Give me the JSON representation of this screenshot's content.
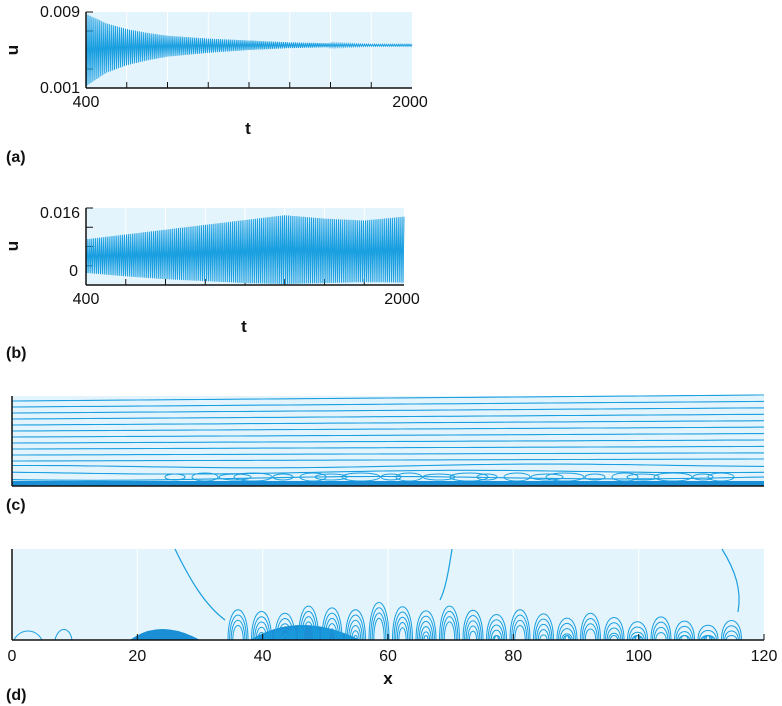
{
  "chart_data": [
    {
      "panel": "(a)",
      "type": "line",
      "xlabel": "t",
      "ylabel": "u",
      "xlim": [
        400,
        2000
      ],
      "ylim": [
        0.001,
        0.009
      ],
      "x_ticks": [
        "400",
        "2000"
      ],
      "y_ticks": [
        "0.001",
        "0.009"
      ],
      "series": [
        {
          "t": [
            400,
            500,
            600,
            700,
            800,
            1000,
            1200,
            1400,
            1600,
            1800,
            2000
          ],
          "u_min": [
            0.0012,
            0.0026,
            0.0034,
            0.0039,
            0.0043,
            0.0047,
            0.005,
            0.0052,
            0.0053,
            0.0054,
            0.0054
          ],
          "u_max": [
            0.0088,
            0.0078,
            0.0072,
            0.0068,
            0.0065,
            0.0062,
            0.006,
            0.0058,
            0.0057,
            0.0056,
            0.0056
          ]
        }
      ],
      "grid": true
    },
    {
      "panel": "(b)",
      "type": "line",
      "xlabel": "t",
      "ylabel": "u",
      "xlim": [
        400,
        2000
      ],
      "ylim": [
        0,
        0.016
      ],
      "x_ticks": [
        "400",
        "2000"
      ],
      "y_ticks": [
        "0.016",
        "0"
      ],
      "series": [
        {
          "t": [
            400,
            600,
            800,
            1000,
            1200,
            1400,
            1600,
            1800,
            2000
          ],
          "u_min": [
            0.0025,
            0.0018,
            0.0012,
            0.0008,
            0.0004,
            0.0002,
            0.0004,
            0.0006,
            0.0005
          ],
          "u_max": [
            0.0095,
            0.0105,
            0.0115,
            0.0125,
            0.0135,
            0.0145,
            0.0138,
            0.0134,
            0.0142
          ]
        }
      ],
      "grid": true
    },
    {
      "panel": "(c)",
      "type": "contour",
      "grid": false
    },
    {
      "panel": "(d)",
      "type": "contour",
      "xlabel": "x",
      "xlim": [
        0,
        120
      ],
      "x_ticks": [
        "0",
        "20",
        "40",
        "60",
        "80",
        "100",
        "120"
      ],
      "grid": true
    }
  ],
  "panel_labels": {
    "a": "(a)",
    "b": "(b)",
    "c": "(c)",
    "d": "(d)"
  },
  "colors": {
    "line": "#1a9fe0",
    "fill": "#1a8fd6",
    "background": "#e4f4fd",
    "grid": "#ffffff"
  }
}
